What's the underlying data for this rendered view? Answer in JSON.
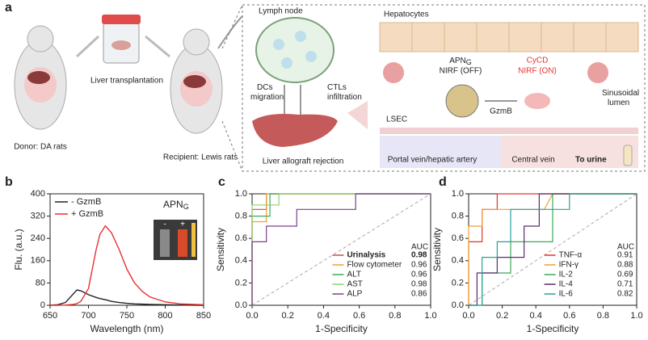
{
  "panel_labels": [
    "a",
    "b",
    "c",
    "d"
  ],
  "diagram": {
    "donor": "Donor: DA rats",
    "transplant": "Liver transplantation",
    "recipient": "Recipient: Lewis rats",
    "lymph_node": "Lymph node",
    "dcs": [
      "DCs",
      "migration"
    ],
    "ctls": [
      "CTLs",
      "infiltration"
    ],
    "rejection": "Liver allograft rejection",
    "hepatocytes": "Hepatocytes",
    "probe_off": {
      "name": "APN",
      "sub": "G",
      "state": "NIRF (OFF)"
    },
    "probe_on": {
      "name": "CyCD",
      "state": "NIRF (ON)"
    },
    "enzyme": "GzmB",
    "lumen": [
      "Sinusoidal",
      "lumen"
    ],
    "lsec": "LSEC",
    "portal": "Portal vein/hepatic  artery",
    "central": "Central vein",
    "urine": "To urine"
  },
  "chart_data": [
    {
      "type": "line",
      "ylabel": "Flu. (a.u.)",
      "xlabel": "Wavelength (nm)",
      "annotation": {
        "name": "APN",
        "sub": "G"
      },
      "inset_labels": [
        "-",
        "+"
      ],
      "xlim": [
        650,
        850
      ],
      "xticks": [
        650,
        700,
        750,
        800,
        850
      ],
      "ylim": [
        0,
        400
      ],
      "yticks": [
        0,
        80,
        160,
        240,
        320,
        400
      ],
      "legend": "upper-left",
      "series": [
        {
          "name": "- GzmB",
          "color": "#222222",
          "x": [
            650,
            660,
            670,
            680,
            685,
            690,
            700,
            710,
            715,
            722,
            730,
            740,
            750,
            760,
            770,
            780,
            800,
            820,
            850
          ],
          "y": [
            0,
            2,
            10,
            40,
            55,
            52,
            38,
            28,
            24,
            20,
            14,
            10,
            7,
            5,
            4,
            3,
            2,
            1,
            0
          ]
        },
        {
          "name": "+ GzmB",
          "color": "#e8312f",
          "x": [
            650,
            660,
            670,
            680,
            685,
            690,
            700,
            710,
            715,
            722,
            730,
            740,
            750,
            760,
            770,
            780,
            800,
            820,
            850
          ],
          "y": [
            0,
            0,
            1,
            3,
            6,
            14,
            60,
            200,
            255,
            285,
            260,
            200,
            130,
            80,
            50,
            30,
            12,
            5,
            2
          ]
        }
      ]
    },
    {
      "type": "roc",
      "ylabel": "Sensitivity",
      "xlabel": "1-Specificity",
      "auc_header": "AUC",
      "xlim": [
        0,
        1
      ],
      "xticks": [
        {
          "value": 0,
          "label": "0.0"
        },
        {
          "value": 0.2,
          "label": "0.2"
        },
        {
          "value": 0.4,
          "label": "0.4"
        },
        {
          "value": 0.6,
          "label": "0.6"
        },
        {
          "value": 0.8,
          "label": "0.8"
        },
        {
          "value": 1,
          "label": "1.0"
        }
      ],
      "ylim": [
        0,
        1
      ],
      "yticks": [
        {
          "value": 0,
          "label": "0.0"
        },
        {
          "value": 0.2,
          "label": "0.2"
        },
        {
          "value": 0.4,
          "label": "0.4"
        },
        {
          "value": 0.6,
          "label": "0.6"
        },
        {
          "value": 0.8,
          "label": "0.8"
        },
        {
          "value": 1,
          "label": "1.0"
        }
      ],
      "legend": "lower-right",
      "series": [
        {
          "name": "Urinalysis",
          "color": "#c0504d",
          "auc": 0.98,
          "bold": true,
          "x": [
            0,
            0,
            0.08,
            0.08,
            1
          ],
          "y": [
            0,
            0.86,
            0.86,
            1,
            1
          ]
        },
        {
          "name": "Flow cytometer",
          "color": "#f0a030",
          "auc": 0.96,
          "x": [
            0,
            0,
            0.08,
            0.08,
            1
          ],
          "y": [
            0,
            0.75,
            0.75,
            1,
            1
          ]
        },
        {
          "name": "ALT",
          "color": "#3aaa5a",
          "auc": 0.96,
          "x": [
            0,
            0,
            0.1,
            0.1,
            1
          ],
          "y": [
            0,
            0.8,
            0.8,
            1,
            1
          ]
        },
        {
          "name": "AST",
          "color": "#8fd06e",
          "auc": 0.98,
          "x": [
            0,
            0,
            0.15,
            0.15,
            1
          ],
          "y": [
            0,
            0.9,
            0.9,
            1,
            1
          ]
        },
        {
          "name": "ALP",
          "color": "#7b3f8c",
          "auc": 0.86,
          "x": [
            0,
            0,
            0.08,
            0.08,
            0.25,
            0.25,
            0.58,
            0.58,
            1
          ],
          "y": [
            0,
            0.57,
            0.57,
            0.71,
            0.71,
            0.86,
            0.86,
            1,
            1
          ]
        }
      ]
    },
    {
      "type": "roc",
      "ylabel": "Sensitivity",
      "xlabel": "1-Specificity",
      "auc_header": "AUC",
      "xlim": [
        0,
        1
      ],
      "xticks": [
        {
          "value": 0,
          "label": "0.0"
        },
        {
          "value": 0.2,
          "label": "0.2"
        },
        {
          "value": 0.4,
          "label": "0.4"
        },
        {
          "value": 0.6,
          "label": "0.6"
        },
        {
          "value": 0.8,
          "label": "0.8"
        },
        {
          "value": 1,
          "label": "1.0"
        }
      ],
      "ylim": [
        0,
        1
      ],
      "yticks": [
        {
          "value": 0,
          "label": "0.0"
        },
        {
          "value": 0.2,
          "label": "0.2"
        },
        {
          "value": 0.4,
          "label": "0.4"
        },
        {
          "value": 0.6,
          "label": "0.6"
        },
        {
          "value": 0.8,
          "label": "0.8"
        },
        {
          "value": 1,
          "label": "1.0"
        }
      ],
      "legend": "lower-right",
      "series": [
        {
          "name": "TNF-α",
          "color": "#e8312f",
          "auc": 0.91,
          "x": [
            0,
            0,
            0.08,
            0.08,
            0.17,
            0.17,
            1
          ],
          "y": [
            0,
            0.57,
            0.57,
            0.86,
            0.86,
            1,
            1
          ]
        },
        {
          "name": "IFN-γ",
          "color": "#f0a030",
          "auc": 0.88,
          "x": [
            0,
            0,
            0.08,
            0.08,
            0.45,
            0.5,
            1
          ],
          "y": [
            0,
            0.71,
            0.71,
            0.86,
            0.86,
            1,
            1
          ]
        },
        {
          "name": "IL-2",
          "color": "#3aaa5a",
          "auc": 0.69,
          "x": [
            0,
            0.08,
            0.08,
            0.25,
            0.25,
            0.5,
            0.5,
            1
          ],
          "y": [
            0,
            0,
            0.29,
            0.29,
            0.57,
            0.57,
            1,
            1
          ]
        },
        {
          "name": "IL-4",
          "color": "#5a2d6e",
          "auc": 0.71,
          "x": [
            0,
            0.05,
            0.05,
            0.17,
            0.17,
            0.33,
            0.33,
            0.42,
            0.42,
            1
          ],
          "y": [
            0,
            0,
            0.29,
            0.29,
            0.43,
            0.43,
            0.71,
            0.71,
            1,
            1
          ]
        },
        {
          "name": "IL-6",
          "color": "#2aa198",
          "auc": 0.82,
          "x": [
            0,
            0.08,
            0.08,
            0.17,
            0.17,
            0.25,
            0.25,
            0.6,
            0.6,
            1
          ],
          "y": [
            0,
            0,
            0.43,
            0.43,
            0.57,
            0.57,
            0.86,
            0.86,
            1,
            1
          ]
        }
      ]
    }
  ]
}
